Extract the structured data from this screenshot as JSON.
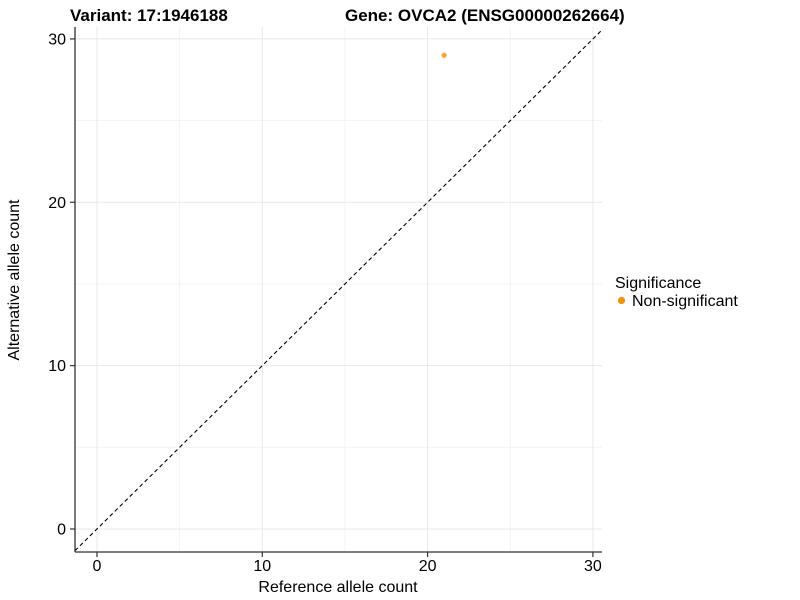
{
  "title": {
    "variant": "Variant: 17:1946188",
    "gene": "Gene: OVCA2 (ENSG00000262664)"
  },
  "chart_data": {
    "type": "scatter",
    "xlabel": "Reference allele count",
    "ylabel": "Alternative allele count",
    "x_ticks": [
      0,
      10,
      20,
      30
    ],
    "y_ticks": [
      0,
      10,
      20,
      30
    ],
    "x_minor_gridlines": [
      5,
      15,
      25
    ],
    "y_minor_gridlines": [
      5,
      15,
      25
    ],
    "xlim": [
      -1.33,
      30.55
    ],
    "ylim": [
      -1.41,
      30.73
    ],
    "grid": true,
    "legend_position": "right",
    "series": [
      {
        "name": "Non-significant",
        "points": [
          {
            "x": 21,
            "y": 29
          }
        ]
      }
    ],
    "reference_line": {
      "type": "abline",
      "intercept": 0,
      "slope": 1,
      "style": "dashed"
    }
  },
  "legend": {
    "title": "Significance",
    "items": [
      {
        "label": "Non-significant",
        "color": "#F2910A"
      }
    ]
  },
  "colors": {
    "point": "#F9A43C",
    "axis": "#333333",
    "tick": "#333333",
    "grid_major": "#E8E8E8",
    "grid_minor": "#F3F3F3",
    "diagonal": "#000000",
    "background": "#FFFFFF"
  }
}
